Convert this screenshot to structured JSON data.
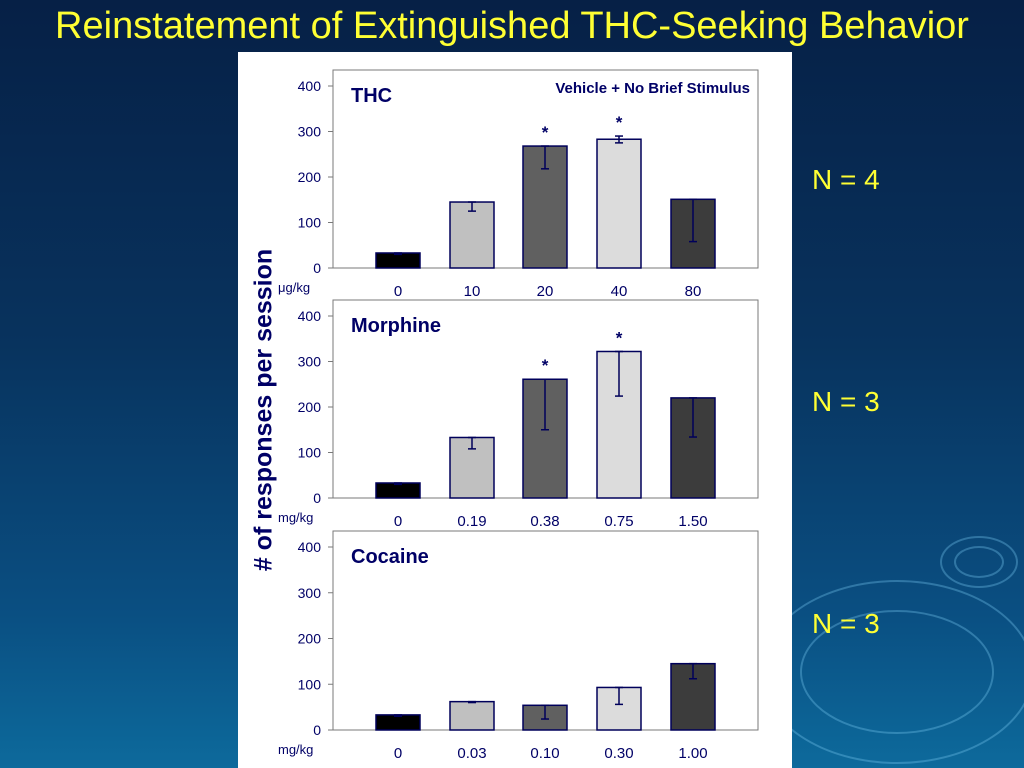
{
  "title": "Reinstatement of Extinguished THC-Seeking Behavior",
  "y_axis_label": "# of responses per session",
  "n_labels": [
    "N = 4",
    "N = 3",
    "N = 3"
  ],
  "colors": {
    "title": "#ffff33",
    "axis_text": "#000066",
    "bar_outline": "#00005a",
    "bar_fills": [
      "#000000",
      "#c0c0c0",
      "#606060",
      "#dcdcdc",
      "#3c3c3c"
    ]
  },
  "chart_data": [
    {
      "type": "bar",
      "panel_title": "THC",
      "annotation": "Vehicle + No Brief Stimulus",
      "unit_label": "μg/kg",
      "categories": [
        "0",
        "10",
        "20",
        "40",
        "80"
      ],
      "values": [
        33,
        145,
        268,
        283,
        151
      ],
      "error_low": [
        30,
        125,
        218,
        275,
        58
      ],
      "error_high": [
        33,
        145,
        268,
        290,
        151
      ],
      "significant": [
        false,
        false,
        true,
        true,
        false
      ],
      "marker": "*",
      "ylim": [
        0,
        400
      ],
      "yticks": [
        0,
        100,
        200,
        300,
        400
      ]
    },
    {
      "type": "bar",
      "panel_title": "Morphine",
      "annotation": "",
      "unit_label": "mg/kg",
      "categories": [
        "0",
        "0.19",
        "0.38",
        "0.75",
        "1.50"
      ],
      "values": [
        33,
        133,
        261,
        322,
        220
      ],
      "error_low": [
        30,
        108,
        150,
        224,
        134
      ],
      "error_high": [
        33,
        133,
        261,
        322,
        220
      ],
      "significant": [
        false,
        false,
        true,
        true,
        false
      ],
      "marker": "*",
      "ylim": [
        0,
        400
      ],
      "yticks": [
        0,
        100,
        200,
        300,
        400
      ]
    },
    {
      "type": "bar",
      "panel_title": "Cocaine",
      "annotation": "",
      "unit_label": "mg/kg",
      "categories": [
        "0",
        "0.03",
        "0.10",
        "0.30",
        "1.00"
      ],
      "values": [
        33,
        62,
        54,
        93,
        145
      ],
      "error_low": [
        30,
        60,
        24,
        56,
        112
      ],
      "error_high": [
        33,
        62,
        54,
        93,
        145
      ],
      "significant": [
        false,
        false,
        false,
        false,
        false
      ],
      "marker": "*",
      "ylim": [
        0,
        400
      ],
      "yticks": [
        0,
        100,
        200,
        300,
        400
      ]
    }
  ]
}
